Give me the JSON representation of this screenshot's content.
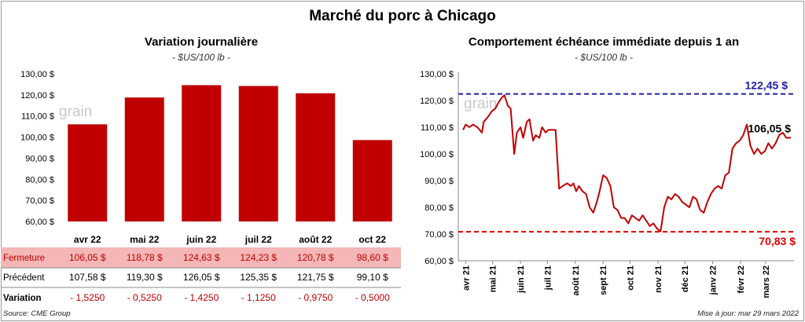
{
  "title": "Marché du porc à Chicago",
  "left_panel": {
    "title": "Variation  journalière",
    "unit": "- $US/100 lb -"
  },
  "right_panel": {
    "title": "Comportement  échéance immédiate depuis 1 an",
    "unit": "- $US/100 lb -"
  },
  "watermark": "grain",
  "table": {
    "rows": [
      {
        "label": "Fermeture",
        "values": [
          "106,05  $",
          "118,78  $",
          "124,63  $",
          "124,23  $",
          "120,78  $",
          "98,60  $"
        ]
      },
      {
        "label": "Précédent",
        "values": [
          "107,58  $",
          "119,30  $",
          "126,05  $",
          "125,35  $",
          "121,75  $",
          "99,10  $"
        ]
      },
      {
        "label": "Variation",
        "values": [
          "- 1,5250",
          "- 0,5250",
          "- 1,4250",
          "- 1,1250",
          "- 0,9750",
          "- 0,5000"
        ]
      }
    ]
  },
  "footer": {
    "source": "Source: CME Group",
    "update": "Mise à jour: mar 29 mars 2022"
  },
  "colors": {
    "bar": "#c00000",
    "line": "#c00000",
    "high_line": "#1f1fa8",
    "low_line": "#e00000",
    "table_highlight": "#f4b6b6"
  },
  "chart_data": [
    {
      "type": "bar",
      "categories": [
        "avr 22",
        "mai 22",
        "juin 22",
        "juil 22",
        "août 22",
        "oct 22"
      ],
      "values": [
        106.05,
        118.78,
        124.63,
        124.23,
        120.78,
        98.6
      ],
      "ylim": [
        60,
        130
      ],
      "yticks": [
        "60,00 $",
        "70,00 $",
        "80,00 $",
        "90,00 $",
        "100,00 $",
        "110,00 $",
        "120,00 $",
        "130,00 $"
      ],
      "grid": false
    },
    {
      "type": "line",
      "x": [
        "2021-03-29",
        "2021-04-01",
        "2021-04-05",
        "2021-04-09",
        "2021-04-14",
        "2021-04-19",
        "2021-04-21",
        "2021-04-26",
        "2021-04-30",
        "2021-05-04",
        "2021-05-07",
        "2021-05-11",
        "2021-05-14",
        "2021-05-18",
        "2021-05-21",
        "2021-05-25",
        "2021-05-28",
        "2021-06-01",
        "2021-06-04",
        "2021-06-08",
        "2021-06-11",
        "2021-06-15",
        "2021-06-18",
        "2021-06-22",
        "2021-06-25",
        "2021-06-29",
        "2021-07-02",
        "2021-07-07",
        "2021-07-10",
        "2021-07-14",
        "2021-07-18",
        "2021-07-23",
        "2021-07-27",
        "2021-07-30",
        "2021-08-02",
        "2021-08-05",
        "2021-08-09",
        "2021-08-13",
        "2021-08-17",
        "2021-08-21",
        "2021-08-25",
        "2021-08-28",
        "2021-09-01",
        "2021-09-05",
        "2021-09-09",
        "2021-09-13",
        "2021-09-17",
        "2021-09-21",
        "2021-09-25",
        "2021-09-29",
        "2021-10-03",
        "2021-10-07",
        "2021-10-11",
        "2021-10-15",
        "2021-10-19",
        "2021-10-23",
        "2021-10-27",
        "2021-10-31",
        "2021-11-04",
        "2021-11-08",
        "2021-11-12",
        "2021-11-16",
        "2021-11-20",
        "2021-11-24",
        "2021-11-28",
        "2021-12-02",
        "2021-12-06",
        "2021-12-10",
        "2021-12-14",
        "2021-12-18",
        "2021-12-22",
        "2021-12-26",
        "2021-12-30",
        "2022-01-03",
        "2022-01-07",
        "2022-01-11",
        "2022-01-15",
        "2022-01-19",
        "2022-01-23",
        "2022-01-27",
        "2022-01-31",
        "2022-02-04",
        "2022-02-08",
        "2022-02-12",
        "2022-02-16",
        "2022-02-20",
        "2022-02-24",
        "2022-02-28",
        "2022-03-04",
        "2022-03-08",
        "2022-03-12",
        "2022-03-16",
        "2022-03-20",
        "2022-03-24",
        "2022-03-29"
      ],
      "y": [
        109,
        111,
        110,
        111,
        110,
        108,
        112,
        114,
        116,
        117,
        119,
        121,
        122,
        118,
        117,
        100,
        108,
        110,
        106,
        112,
        113,
        105,
        107,
        106,
        110,
        108,
        109,
        109,
        109,
        87,
        88,
        89,
        88,
        89,
        86,
        88,
        86,
        85,
        80,
        78,
        82,
        86,
        92,
        91,
        88,
        80,
        79,
        76,
        76,
        74,
        77,
        76,
        75,
        77,
        75,
        73,
        74,
        72,
        71,
        80,
        84,
        83,
        85,
        84,
        82,
        81,
        80,
        84,
        83,
        79,
        78,
        82,
        85,
        87,
        88,
        87,
        92,
        93,
        102,
        104,
        105,
        107,
        111,
        103,
        100,
        102,
        100,
        101,
        104,
        102,
        104,
        107,
        108,
        106,
        106.05
      ],
      "ylim": [
        60,
        130
      ],
      "yticks": [
        "60,00 $",
        "70,00 $",
        "80,00 $",
        "90,00 $",
        "100,00 $",
        "110,00 $",
        "120,00 $",
        "130,00 $"
      ],
      "xticks": [
        "avr 21",
        "mai 21",
        "juin 21",
        "juil 21",
        "août 21",
        "sept 21",
        "oct 21",
        "nov 21",
        "déc 21",
        "janv 22",
        "févr 22",
        "mars 22"
      ],
      "high": 122.45,
      "low": 70.83,
      "high_label": "122,45 $",
      "low_label": "70,83 $",
      "last_label": "106,05 $",
      "grid": false
    }
  ]
}
